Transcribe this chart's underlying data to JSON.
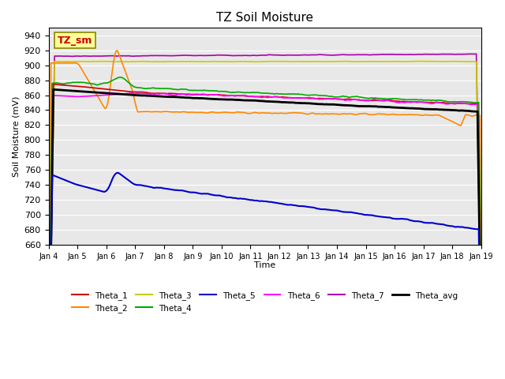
{
  "title": "TZ Soil Moisture",
  "xlabel": "Time",
  "ylabel": "Soil Moisture (mV)",
  "ylim": [
    660,
    950
  ],
  "yticks": [
    660,
    680,
    700,
    720,
    740,
    760,
    780,
    800,
    820,
    840,
    860,
    880,
    900,
    920,
    940
  ],
  "bg_color": "#e8e8e8",
  "legend_label": "TZ_sm",
  "legend_label_color": "#cc0000",
  "legend_box_color": "#ffff99",
  "series": {
    "Theta_1": {
      "color": "#cc0000",
      "lw": 1.2
    },
    "Theta_2": {
      "color": "#ff8800",
      "lw": 1.2
    },
    "Theta_3": {
      "color": "#cccc00",
      "lw": 1.2
    },
    "Theta_4": {
      "color": "#00aa00",
      "lw": 1.2
    },
    "Theta_5": {
      "color": "#0000cc",
      "lw": 1.5
    },
    "Theta_6": {
      "color": "#ff00ff",
      "lw": 1.2
    },
    "Theta_7": {
      "color": "#aa00aa",
      "lw": 1.2
    },
    "Theta_avg": {
      "color": "#000000",
      "lw": 2.0
    }
  }
}
